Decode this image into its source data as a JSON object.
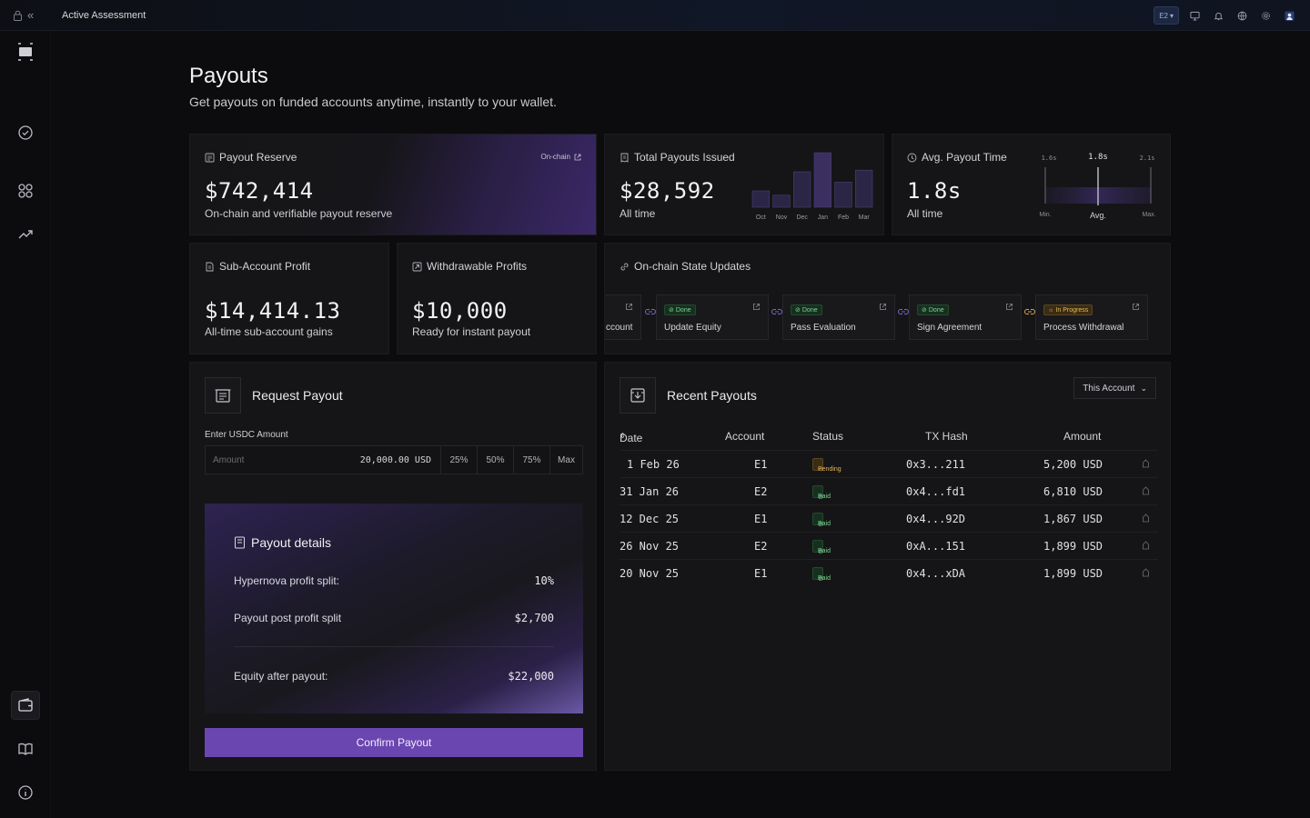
{
  "topbar": {
    "title": "Active Assessment",
    "collapse_icon": "«",
    "account_badge": "E2"
  },
  "page": {
    "title": "Payouts",
    "subtitle": "Get payouts on funded accounts anytime, instantly to your wallet."
  },
  "reserve": {
    "label": "Payout Reserve",
    "onchain": "On-chain",
    "value": "$742,414",
    "caption": "On-chain and verifiable payout reserve"
  },
  "issued": {
    "label": "Total Payouts Issued",
    "value": "$28,592",
    "caption": "All time",
    "chart_data": {
      "type": "bar",
      "categories": [
        "Oct",
        "Nov",
        "Dec",
        "Jan",
        "Feb",
        "Mar"
      ],
      "values": [
        0.3,
        0.22,
        0.65,
        1.0,
        0.46,
        0.68
      ]
    }
  },
  "avg": {
    "label": "Avg. Payout Time",
    "value": "1.8s",
    "caption": "All time",
    "min_value": "1.6s",
    "avg_value": "1.8s",
    "max_value": "2.1s",
    "min_label": "Min.",
    "avg_label": "Avg.",
    "max_label": "Max."
  },
  "subacc": {
    "label": "Sub-Account Profit",
    "value": "$14,414.13",
    "caption": "All-time sub-account gains"
  },
  "withdraw": {
    "label": "Withdrawable Profits",
    "value": "$10,000",
    "caption": "Ready for instant payout"
  },
  "states": {
    "label": "On-chain State Updates",
    "steps": [
      {
        "status": "",
        "name": "ccount"
      },
      {
        "status": "Done",
        "name": "Update Equity"
      },
      {
        "status": "Done",
        "name": "Pass Evaluation"
      },
      {
        "status": "Done",
        "name": "Sign Agreement"
      },
      {
        "status": "In Progress",
        "name": "Process Withdrawal"
      }
    ]
  },
  "request": {
    "title": "Request Payout",
    "usdc_label": "Enter USDC Amount",
    "amount_placeholder": "Amount",
    "amount_value": "20,000.00 USD",
    "pct_25": "25%",
    "pct_50": "50%",
    "pct_75": "75%",
    "pct_max": "Max",
    "details_title": "Payout details",
    "split_label": "Hypernova profit split:",
    "split_value": "10%",
    "post_label": "Payout post profit split",
    "post_value": "$2,700",
    "equity_label": "Equity after payout:",
    "equity_value": "$22,000",
    "confirm": "Confirm Payout"
  },
  "recent": {
    "title": "Recent Payouts",
    "filter": "This Account",
    "headers": {
      "date": "Date",
      "account": "Account",
      "status": "Status",
      "tx": "TX Hash",
      "amount": "Amount"
    },
    "rows": [
      {
        "date": "1 Feb 26",
        "account": "E1",
        "status": "Pending",
        "tx": "0x3...211",
        "amount": "5,200 USD"
      },
      {
        "date": "31 Jan 26",
        "account": "E2",
        "status": "Paid",
        "tx": "0x4...fd1",
        "amount": "6,810 USD"
      },
      {
        "date": "12 Dec 25",
        "account": "E1",
        "status": "Paid",
        "tx": "0x4...92D",
        "amount": "1,867 USD"
      },
      {
        "date": "26 Nov 25",
        "account": "E2",
        "status": "Paid",
        "tx": "0xA...151",
        "amount": "1,899 USD"
      },
      {
        "date": "20 Nov 25",
        "account": "E1",
        "status": "Paid",
        "tx": "0x4...xDA",
        "amount": "1,899 USD"
      }
    ]
  },
  "colors": {
    "accent": "#6a46b0",
    "pending": "#e6b75a",
    "paid": "#7cd491"
  }
}
